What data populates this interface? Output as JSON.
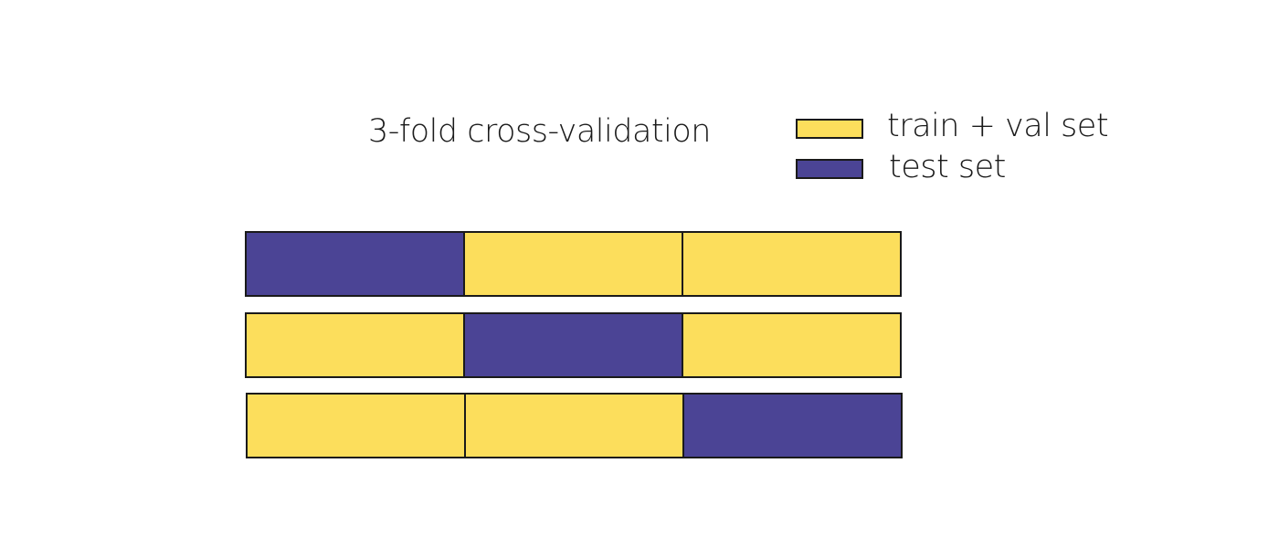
{
  "title": "3-fold cross-validation",
  "legend": [
    {
      "label": "train + val set",
      "color": "#fcde5c"
    },
    {
      "label": "test set",
      "color": "#4b4495"
    }
  ],
  "folds": [
    [
      "test set",
      "train + val set",
      "train + val set"
    ],
    [
      "train + val set",
      "test set",
      "train + val set"
    ],
    [
      "train + val set",
      "train + val set",
      "test set"
    ]
  ]
}
